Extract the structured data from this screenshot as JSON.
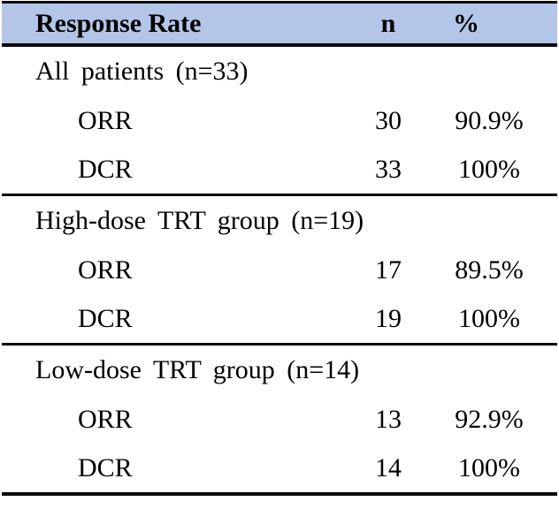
{
  "table": {
    "header": {
      "label": "Response Rate",
      "n": "n",
      "pct": "%"
    },
    "sections": [
      {
        "title": "All patients (n=33)",
        "rows": [
          {
            "label": "ORR",
            "n": "30",
            "pct": "90.9%"
          },
          {
            "label": "DCR",
            "n": "33",
            "pct": "100%"
          }
        ]
      },
      {
        "title": "High-dose TRT group (n=19)",
        "rows": [
          {
            "label": "ORR",
            "n": "17",
            "pct": "89.5%"
          },
          {
            "label": "DCR",
            "n": "19",
            "pct": "100%"
          }
        ]
      },
      {
        "title": "Low-dose TRT group (n=14)",
        "rows": [
          {
            "label": "ORR",
            "n": "13",
            "pct": "92.9%"
          },
          {
            "label": "DCR",
            "n": "14",
            "pct": "100%"
          }
        ]
      }
    ],
    "colors": {
      "header_bg": "#b4c6e7",
      "rule": "#0a0a0a"
    }
  }
}
